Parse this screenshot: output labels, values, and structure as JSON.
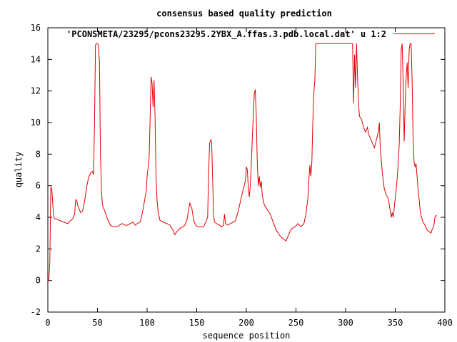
{
  "chart_data": {
    "type": "line",
    "title": "consensus based quality prediction",
    "xlabel": "sequence position",
    "ylabel": "quality",
    "xlim": [
      0,
      400
    ],
    "ylim": [
      -2,
      16
    ],
    "xticks": [
      "0",
      "50",
      "100",
      "150",
      "200",
      "250",
      "300",
      "350",
      "400"
    ],
    "yticks": [
      "-2",
      "0",
      "2",
      "4",
      "6",
      "8",
      "10",
      "12",
      "14",
      "16"
    ],
    "legend_position": "top-right",
    "grid": false,
    "series": [
      {
        "name": "'PCONSMETA/23295/pcons23295.2YBX_A.ffas.3.pdb.local.dat' u 1:2",
        "color": "#e00000",
        "points": [
          [
            0,
            0.0
          ],
          [
            1,
            0.0
          ],
          [
            2,
            1.2
          ],
          [
            3,
            5.9
          ],
          [
            4,
            5.8
          ],
          [
            5,
            4.8
          ],
          [
            6,
            4.0
          ],
          [
            7,
            3.9
          ],
          [
            9,
            3.9
          ],
          [
            12,
            3.8
          ],
          [
            16,
            3.7
          ],
          [
            20,
            3.6
          ],
          [
            23,
            3.8
          ],
          [
            25,
            3.9
          ],
          [
            27,
            4.2
          ],
          [
            28,
            5.1
          ],
          [
            29,
            5.1
          ],
          [
            30,
            4.8
          ],
          [
            31,
            4.6
          ],
          [
            33,
            4.3
          ],
          [
            35,
            4.4
          ],
          [
            37,
            5.0
          ],
          [
            39,
            5.9
          ],
          [
            41,
            6.5
          ],
          [
            43,
            6.8
          ],
          [
            45,
            6.9
          ],
          [
            46,
            6.7
          ],
          [
            47,
            9.8
          ],
          [
            48,
            14.9
          ],
          [
            49,
            15.0
          ],
          [
            50,
            15.0
          ],
          [
            51,
            14.9
          ],
          [
            52,
            13.8
          ],
          [
            53,
            8.0
          ],
          [
            54,
            5.7
          ],
          [
            55,
            4.8
          ],
          [
            56,
            4.6
          ],
          [
            58,
            4.3
          ],
          [
            60,
            3.9
          ],
          [
            63,
            3.5
          ],
          [
            66,
            3.4
          ],
          [
            70,
            3.4
          ],
          [
            72,
            3.5
          ],
          [
            75,
            3.6
          ],
          [
            78,
            3.5
          ],
          [
            80,
            3.5
          ],
          [
            83,
            3.6
          ],
          [
            86,
            3.7
          ],
          [
            88,
            3.5
          ],
          [
            90,
            3.6
          ],
          [
            93,
            3.7
          ],
          [
            95,
            4.2
          ],
          [
            97,
            4.9
          ],
          [
            99,
            5.6
          ],
          [
            100,
            6.6
          ],
          [
            101,
            7.1
          ],
          [
            102,
            7.7
          ],
          [
            103,
            10.1
          ],
          [
            104,
            12.9
          ],
          [
            105,
            12.5
          ],
          [
            106,
            11.0
          ],
          [
            107,
            12.7
          ],
          [
            108,
            10.4
          ],
          [
            109,
            6.6
          ],
          [
            110,
            5.1
          ],
          [
            111,
            4.4
          ],
          [
            113,
            3.8
          ],
          [
            116,
            3.7
          ],
          [
            120,
            3.6
          ],
          [
            123,
            3.5
          ],
          [
            126,
            3.2
          ],
          [
            128,
            2.9
          ],
          [
            130,
            3.1
          ],
          [
            133,
            3.3
          ],
          [
            136,
            3.4
          ],
          [
            138,
            3.5
          ],
          [
            140,
            3.8
          ],
          [
            142,
            4.5
          ],
          [
            143,
            4.9
          ],
          [
            145,
            4.6
          ],
          [
            147,
            3.8
          ],
          [
            149,
            3.5
          ],
          [
            151,
            3.4
          ],
          [
            154,
            3.4
          ],
          [
            157,
            3.4
          ],
          [
            159,
            3.7
          ],
          [
            161,
            4.0
          ],
          [
            162,
            6.9
          ],
          [
            163,
            8.7
          ],
          [
            164,
            8.9
          ],
          [
            165,
            8.8
          ],
          [
            166,
            6.5
          ],
          [
            167,
            4.1
          ],
          [
            168,
            3.7
          ],
          [
            170,
            3.6
          ],
          [
            173,
            3.5
          ],
          [
            175,
            3.4
          ],
          [
            177,
            3.5
          ],
          [
            178,
            4.2
          ],
          [
            179,
            3.6
          ],
          [
            181,
            3.5
          ],
          [
            184,
            3.6
          ],
          [
            187,
            3.7
          ],
          [
            189,
            3.8
          ],
          [
            191,
            4.2
          ],
          [
            193,
            4.7
          ],
          [
            195,
            5.3
          ],
          [
            197,
            5.8
          ],
          [
            199,
            6.3
          ],
          [
            200,
            7.2
          ],
          [
            201,
            7.0
          ],
          [
            202,
            5.8
          ],
          [
            203,
            5.3
          ],
          [
            204,
            6.0
          ],
          [
            205,
            7.4
          ],
          [
            206,
            9.0
          ],
          [
            207,
            10.5
          ],
          [
            208,
            11.8
          ],
          [
            209,
            12.1
          ],
          [
            210,
            10.4
          ],
          [
            211,
            7.5
          ],
          [
            212,
            6.0
          ],
          [
            213,
            6.6
          ],
          [
            214,
            5.9
          ],
          [
            215,
            6.3
          ],
          [
            216,
            5.4
          ],
          [
            218,
            4.8
          ],
          [
            221,
            4.5
          ],
          [
            224,
            4.2
          ],
          [
            227,
            3.7
          ],
          [
            230,
            3.2
          ],
          [
            233,
            2.9
          ],
          [
            236,
            2.7
          ],
          [
            238,
            2.6
          ],
          [
            240,
            2.5
          ],
          [
            242,
            2.8
          ],
          [
            244,
            3.1
          ],
          [
            246,
            3.3
          ],
          [
            249,
            3.4
          ],
          [
            252,
            3.6
          ],
          [
            255,
            3.4
          ],
          [
            258,
            3.6
          ],
          [
            260,
            4.2
          ],
          [
            262,
            5.2
          ],
          [
            263,
            6.4
          ],
          [
            264,
            7.3
          ],
          [
            265,
            6.6
          ],
          [
            266,
            7.5
          ],
          [
            267,
            10.1
          ],
          [
            268,
            11.9
          ],
          [
            269,
            12.7
          ],
          [
            270,
            15.0
          ],
          [
            275,
            15.0
          ],
          [
            280,
            15.0
          ],
          [
            285,
            15.0
          ],
          [
            290,
            15.0
          ],
          [
            295,
            15.0
          ],
          [
            300,
            15.0
          ],
          [
            305,
            15.0
          ],
          [
            307,
            15.0
          ],
          [
            308,
            11.2
          ],
          [
            309,
            14.3
          ],
          [
            310,
            12.2
          ],
          [
            311,
            15.0
          ],
          [
            312,
            13.0
          ],
          [
            313,
            11.2
          ],
          [
            314,
            10.4
          ],
          [
            316,
            10.2
          ],
          [
            318,
            9.7
          ],
          [
            320,
            9.4
          ],
          [
            322,
            9.7
          ],
          [
            323,
            9.3
          ],
          [
            325,
            9.0
          ],
          [
            327,
            8.7
          ],
          [
            329,
            8.4
          ],
          [
            331,
            8.9
          ],
          [
            333,
            9.4
          ],
          [
            334,
            10.0
          ],
          [
            335,
            8.3
          ],
          [
            336,
            7.6
          ],
          [
            337,
            6.8
          ],
          [
            338,
            6.3
          ],
          [
            339,
            5.8
          ],
          [
            340,
            5.6
          ],
          [
            341,
            5.4
          ],
          [
            343,
            5.2
          ],
          [
            345,
            4.4
          ],
          [
            346,
            4.0
          ],
          [
            347,
            4.3
          ],
          [
            348,
            4.0
          ],
          [
            349,
            4.6
          ],
          [
            350,
            5.2
          ],
          [
            351,
            5.8
          ],
          [
            352,
            6.5
          ],
          [
            353,
            7.4
          ],
          [
            354,
            8.6
          ],
          [
            355,
            11.0
          ],
          [
            356,
            14.6
          ],
          [
            357,
            15.0
          ],
          [
            358,
            12.4
          ],
          [
            359,
            8.8
          ],
          [
            360,
            11.2
          ],
          [
            361,
            12.9
          ],
          [
            362,
            13.8
          ],
          [
            363,
            12.2
          ],
          [
            364,
            14.6
          ],
          [
            365,
            15.0
          ],
          [
            366,
            15.0
          ],
          [
            367,
            12.7
          ],
          [
            368,
            9.0
          ],
          [
            369,
            7.5
          ],
          [
            370,
            7.2
          ],
          [
            371,
            7.4
          ],
          [
            372,
            6.6
          ],
          [
            373,
            5.8
          ],
          [
            374,
            5.2
          ],
          [
            375,
            4.5
          ],
          [
            376,
            4.1
          ],
          [
            378,
            3.7
          ],
          [
            380,
            3.5
          ],
          [
            382,
            3.2
          ],
          [
            384,
            3.1
          ],
          [
            386,
            3.0
          ],
          [
            387,
            3.2
          ],
          [
            388,
            3.3
          ],
          [
            389,
            3.5
          ],
          [
            390,
            4.0
          ],
          [
            391,
            4.1
          ],
          [
            392,
            4.1
          ]
        ]
      }
    ]
  }
}
